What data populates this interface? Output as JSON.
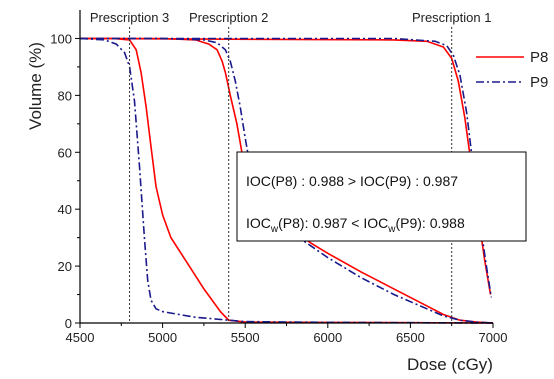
{
  "chart_data": {
    "type": "line",
    "title": "",
    "xlabel": "Dose (cGy)",
    "ylabel": "Volume (%)",
    "xlim": [
      4500,
      7000
    ],
    "ylim": [
      0,
      110
    ],
    "xticks": [
      4500,
      5000,
      5500,
      6000,
      6500,
      7000
    ],
    "yticks": [
      0,
      20,
      40,
      60,
      80,
      100
    ],
    "grid": false,
    "legend_position": "top-right",
    "prescriptions": [
      {
        "label": "Prescription 3",
        "dose": 4800
      },
      {
        "label": "Prescription 2",
        "dose": 5400
      },
      {
        "label": "Prescription 1",
        "dose": 6750
      }
    ],
    "series": [
      {
        "name": "P8",
        "color": "#ff0000",
        "dash": "solid",
        "segments": [
          [
            [
              4500,
              100
            ],
            [
              4700,
              100
            ],
            [
              4800,
              99.5
            ],
            [
              4840,
              96
            ],
            [
              4870,
              88
            ],
            [
              4900,
              76
            ],
            [
              4930,
              62
            ],
            [
              4960,
              48
            ],
            [
              5000,
              38
            ],
            [
              5050,
              30
            ],
            [
              5150,
              21
            ],
            [
              5250,
              12
            ],
            [
              5350,
              4
            ],
            [
              5400,
              1
            ],
            [
              5500,
              0.3
            ],
            [
              7000,
              0
            ]
          ],
          [
            [
              4500,
              100
            ],
            [
              5000,
              100
            ],
            [
              5200,
              99.5
            ],
            [
              5280,
              98
            ],
            [
              5330,
              96
            ],
            [
              5360,
              92
            ],
            [
              5380,
              88
            ],
            [
              5410,
              80
            ],
            [
              5450,
              70
            ],
            [
              5480,
              60
            ],
            [
              5520,
              52
            ],
            [
              5560,
              47
            ],
            [
              5620,
              42
            ],
            [
              5700,
              37
            ],
            [
              5800,
              32
            ],
            [
              5900,
              28
            ],
            [
              6000,
              24.5
            ],
            [
              6200,
              18
            ],
            [
              6400,
              12
            ],
            [
              6600,
              6
            ],
            [
              6700,
              3
            ],
            [
              6800,
              1
            ],
            [
              6900,
              0.3
            ],
            [
              7000,
              0
            ]
          ],
          [
            [
              4500,
              100
            ],
            [
              6400,
              99.5
            ],
            [
              6600,
              99
            ],
            [
              6700,
              97
            ],
            [
              6750,
              93
            ],
            [
              6790,
              85
            ],
            [
              6830,
              72
            ],
            [
              6870,
              55
            ],
            [
              6910,
              38
            ],
            [
              6950,
              22
            ],
            [
              6985,
              10
            ]
          ]
        ]
      },
      {
        "name": "P9",
        "color": "#1a1a8c",
        "dash": "dashdot",
        "segments": [
          [
            [
              4500,
              100
            ],
            [
              4650,
              99.5
            ],
            [
              4720,
              98
            ],
            [
              4770,
              95
            ],
            [
              4800,
              90
            ],
            [
              4830,
              78
            ],
            [
              4860,
              55
            ],
            [
              4890,
              30
            ],
            [
              4910,
              15
            ],
            [
              4930,
              8
            ],
            [
              4960,
              5
            ],
            [
              5000,
              4
            ],
            [
              5100,
              3
            ],
            [
              5200,
              2
            ],
            [
              5300,
              1.5
            ],
            [
              5400,
              1
            ],
            [
              5500,
              0.5
            ],
            [
              6000,
              0.2
            ],
            [
              7000,
              0
            ]
          ],
          [
            [
              4500,
              100
            ],
            [
              5000,
              100
            ],
            [
              5250,
              99.5
            ],
            [
              5330,
              98.5
            ],
            [
              5380,
              96
            ],
            [
              5410,
              92
            ],
            [
              5440,
              85
            ],
            [
              5470,
              76
            ],
            [
              5500,
              65
            ],
            [
              5530,
              55
            ],
            [
              5570,
              47
            ],
            [
              5620,
              42
            ],
            [
              5700,
              36
            ],
            [
              5800,
              31
            ],
            [
              5900,
              27
            ],
            [
              6000,
              23
            ],
            [
              6200,
              16
            ],
            [
              6400,
              10
            ],
            [
              6600,
              5
            ],
            [
              6700,
              2.5
            ],
            [
              6800,
              1
            ],
            [
              6900,
              0.3
            ],
            [
              7000,
              0
            ]
          ],
          [
            [
              4500,
              100
            ],
            [
              6400,
              100
            ],
            [
              6650,
              99
            ],
            [
              6720,
              97.5
            ],
            [
              6760,
              94
            ],
            [
              6800,
              87
            ],
            [
              6840,
              74
            ],
            [
              6880,
              55
            ],
            [
              6920,
              36
            ],
            [
              6960,
              20
            ],
            [
              6990,
              9
            ]
          ]
        ]
      }
    ],
    "annotation": {
      "line1": "IOC(P8) : 0.988 > IOC(P9) : 0.987",
      "line2_a": "IOC",
      "line2_b": "w",
      "line2_c": "(P8): 0.987 < IOC",
      "line2_d": "w",
      "line2_e": "(P9): 0.988"
    }
  }
}
